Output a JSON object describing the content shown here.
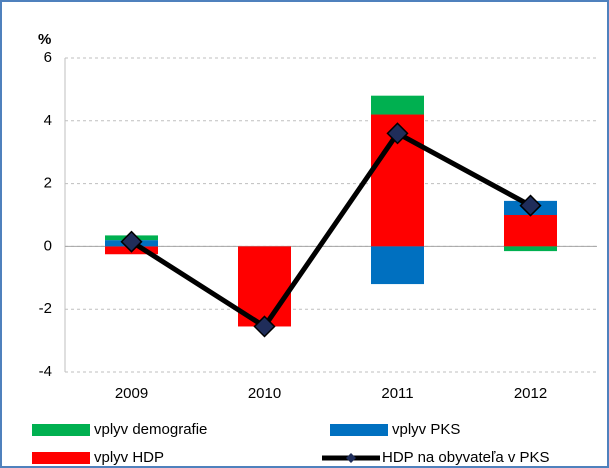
{
  "chart_data": {
    "type": "bar",
    "y_label": "%",
    "categories": [
      "2009",
      "2010",
      "2011",
      "2012"
    ],
    "series": [
      {
        "name": "vplyv HDP",
        "color": "#ff0000",
        "type": "bar",
        "values": [
          -0.25,
          -2.55,
          4.2,
          1.0
        ]
      },
      {
        "name": "vplyv PKS",
        "color": "#0070c0",
        "type": "bar",
        "values": [
          0.2,
          0,
          -1.2,
          0.45
        ]
      },
      {
        "name": "vplyv demografie",
        "color": "#00b050",
        "type": "bar",
        "values": [
          0.15,
          0,
          0.6,
          -0.15
        ]
      },
      {
        "name": "HDP na obyvateľa v PKS",
        "color": "#000000",
        "marker_color": "#1f2d5a",
        "type": "line",
        "values": [
          0.15,
          -2.55,
          3.6,
          1.3
        ]
      }
    ],
    "ylim": [
      -4,
      6
    ],
    "yticks": [
      -4,
      -2,
      0,
      2,
      4,
      6
    ],
    "grid": true,
    "legend": "bottom"
  }
}
